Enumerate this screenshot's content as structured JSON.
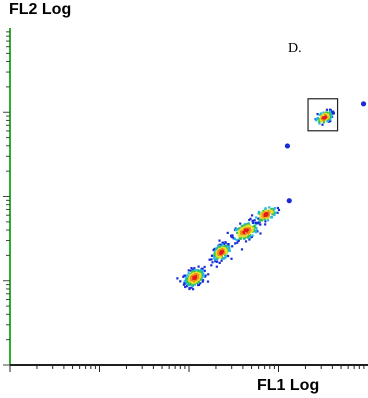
{
  "chart_data": {
    "type": "scatter",
    "title": "",
    "xlabel": "FL1 Log",
    "ylabel": "FL2 Log",
    "xscale": "log",
    "yscale": "log",
    "decades": 4,
    "grid": false,
    "density_colors": [
      "#1a2bd6",
      "#23b7e6",
      "#37c24a",
      "#e8e02a",
      "#f08a1a",
      "#e31b1b"
    ],
    "clusters": [
      {
        "x_decade": 2.05,
        "y_decade": 1.05,
        "spread_x": 0.055,
        "spread_y": 0.05,
        "points": 260
      },
      {
        "x_decade": 2.35,
        "y_decade": 1.35,
        "spread_x": 0.05,
        "spread_y": 0.045,
        "points": 200
      },
      {
        "x_decade": 2.62,
        "y_decade": 1.6,
        "spread_x": 0.07,
        "spread_y": 0.05,
        "points": 180
      },
      {
        "x_decade": 2.85,
        "y_decade": 1.8,
        "spread_x": 0.06,
        "spread_y": 0.04,
        "points": 110
      },
      {
        "x_decade": 3.5,
        "y_decade": 2.95,
        "spread_x": 0.045,
        "spread_y": 0.035,
        "points": 90
      }
    ],
    "outliers": [
      {
        "x_decade": 3.95,
        "y_decade": 3.1
      },
      {
        "x_decade": 3.1,
        "y_decade": 2.6
      },
      {
        "x_decade": 3.12,
        "y_decade": 1.95
      }
    ],
    "gates": [
      {
        "label": "D.",
        "x_decade_range": [
          3.33,
          3.66
        ],
        "y_decade_range": [
          2.78,
          3.16
        ]
      }
    ]
  }
}
